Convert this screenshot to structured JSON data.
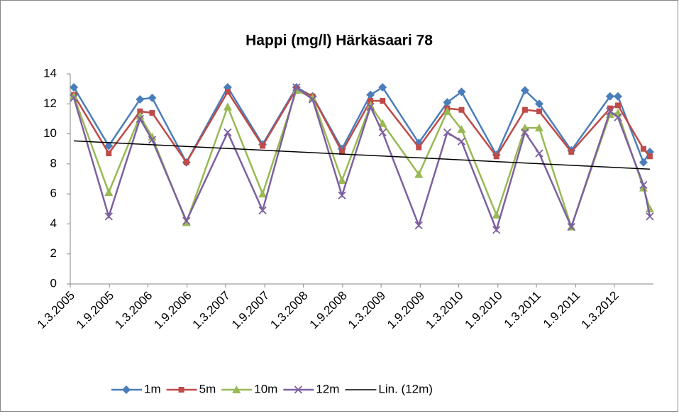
{
  "chart_data": {
    "type": "line",
    "title": "Happi (mg/l) Härkäsaari 78",
    "x": [
      "18.3.2005",
      "29.8.2005",
      "23.1.2006",
      "21.3.2006",
      "29.8.2006",
      "11.3.2007",
      "22.8.2007",
      "28.1.2008",
      "13.4.2008",
      "29.8.2008",
      "10.1.2009",
      "8.3.2009",
      "25.8.2009",
      "6.1.2010",
      "14.3.2010",
      "25.8.2010",
      "6.1.2011",
      "14.3.2011",
      "12.8.2011",
      "10.2.2012",
      "18.3.2012",
      "16.7.2012",
      "15.8.2012"
    ],
    "series": [
      {
        "name": "1m",
        "color": "#4a7ebb",
        "marker": "diamond",
        "values": [
          13.1,
          9.2,
          12.3,
          12.4,
          8.1,
          13.1,
          9.3,
          13.1,
          12.5,
          9.0,
          12.6,
          13.1,
          9.4,
          12.1,
          12.8,
          8.6,
          12.9,
          12.0,
          8.9,
          12.5,
          12.5,
          8.1,
          8.8
        ]
      },
      {
        "name": "5m",
        "color": "#be4b48",
        "marker": "square",
        "values": [
          12.6,
          8.7,
          11.5,
          11.4,
          8.1,
          12.8,
          9.2,
          13.0,
          12.5,
          8.8,
          12.2,
          12.2,
          9.1,
          11.7,
          11.6,
          8.5,
          11.6,
          11.5,
          8.8,
          11.7,
          11.9,
          9.0,
          8.5
        ]
      },
      {
        "name": "10m",
        "color": "#98b954",
        "marker": "triangle",
        "values": [
          12.5,
          6.1,
          11.2,
          9.8,
          4.1,
          11.8,
          6.0,
          12.9,
          12.4,
          6.9,
          11.9,
          10.7,
          7.3,
          11.5,
          10.3,
          4.6,
          10.4,
          10.4,
          3.8,
          11.3,
          11.4,
          6.4,
          5.0
        ]
      },
      {
        "name": "12m",
        "color": "#7d60a0",
        "marker": "x",
        "values": [
          12.4,
          4.5,
          11.0,
          9.6,
          4.2,
          10.1,
          4.9,
          13.1,
          12.3,
          5.9,
          11.8,
          10.1,
          3.9,
          10.1,
          9.5,
          3.6,
          10.1,
          8.7,
          3.8,
          11.5,
          11.1,
          6.6,
          4.5
        ]
      }
    ],
    "trendline": {
      "name": "Lin. (12m)",
      "color": "#000000",
      "values": [
        9.53,
        7.65
      ]
    },
    "xlim": [
      "1.3.2005",
      "1.9.2012"
    ],
    "xticks": [
      "1.3.2005",
      "1.9.2005",
      "1.3.2006",
      "1.9.2006",
      "1.3.2007",
      "1.9.2007",
      "1.3.2008",
      "1.9.2008",
      "1.3.2009",
      "1.9.2009",
      "1.3.2010",
      "1.9.2010",
      "1.3.2011",
      "1.9.2011",
      "1.3.2012"
    ],
    "ylim": [
      0,
      14
    ],
    "yticks": [
      0,
      2,
      4,
      6,
      8,
      10,
      12,
      14
    ],
    "grid": false,
    "legend": "bottom"
  }
}
